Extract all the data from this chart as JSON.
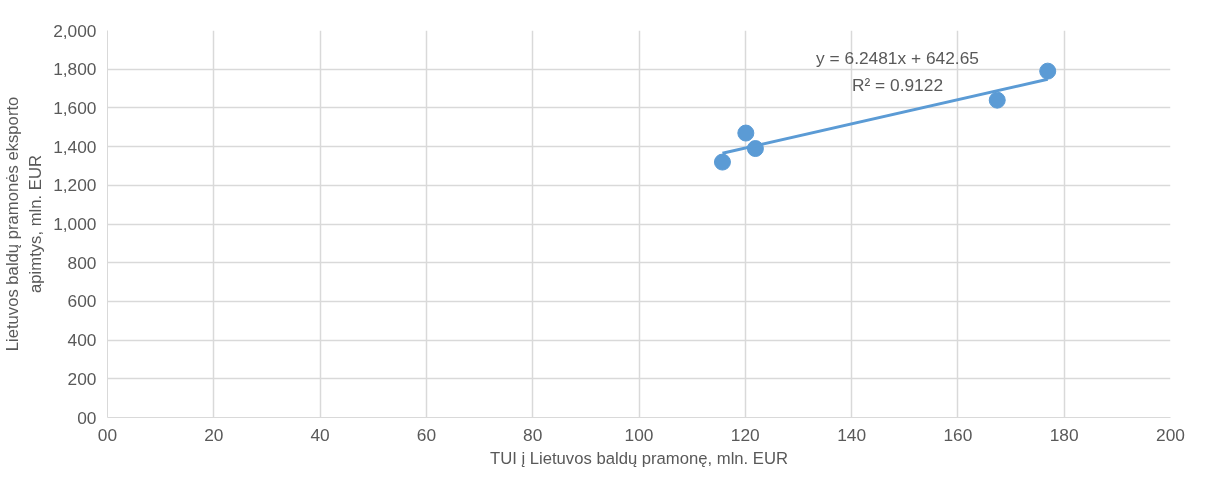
{
  "chart_data": {
    "type": "scatter",
    "xlabel": "TUI į Lietuvos baldų pramonę, mln. EUR",
    "ylabel": "Lietuvos baldų pramonės eksporto apimtys, mln. EUR",
    "annotations": [
      "y = 6.2481x + 642.65",
      "R² = 0.9122"
    ],
    "series": [
      {
        "color": "#5b9bd5",
        "x": [
          115.7,
          120.1,
          121.9,
          167.4,
          176.9
        ],
        "values": [
          1320,
          1470,
          1390,
          1640,
          1790
        ]
      },
      {
        "type": "line",
        "marker": "none",
        "color": "#5b9bd5",
        "x": [
          115.7,
          176.9
        ],
        "values": [
          1366,
          1748
        ]
      }
    ],
    "marker": "circle",
    "grid": true,
    "xlim": [
      0,
      200
    ],
    "ylim": [
      0,
      2000
    ],
    "xticks": [
      {
        "value": 0,
        "label": "00"
      },
      20,
      40,
      60,
      80,
      100,
      120,
      140,
      160,
      180,
      200
    ],
    "yticks": [
      {
        "value": 0,
        "label": "00"
      },
      {
        "value": 200,
        "label": "200"
      },
      {
        "value": 400,
        "label": "400"
      },
      {
        "value": 600,
        "label": "600"
      },
      {
        "value": 800,
        "label": "800"
      },
      {
        "value": 1000,
        "label": "1,000"
      },
      {
        "value": 1200,
        "label": "1,200"
      },
      {
        "value": 1400,
        "label": "1,400"
      },
      {
        "value": 1600,
        "label": "1,600"
      },
      {
        "value": 1800,
        "label": "1,800"
      },
      {
        "value": 2000,
        "label": "2,000"
      }
    ]
  }
}
